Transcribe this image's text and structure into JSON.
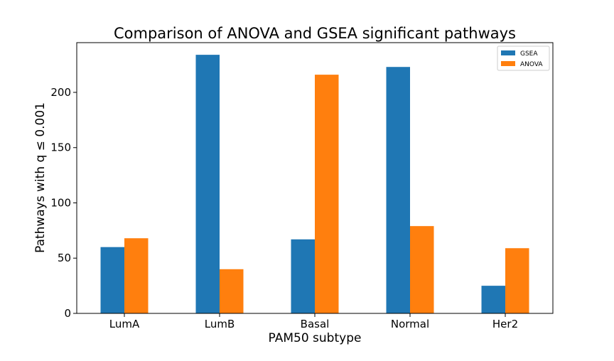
{
  "chart_data": {
    "type": "bar",
    "title": "Comparison of ANOVA and GSEA significant pathways",
    "xlabel": "PAM50 subtype",
    "ylabel": "Pathways with q ≤ 0.001",
    "categories": [
      "LumA",
      "LumB",
      "Basal",
      "Normal",
      "Her2"
    ],
    "series": [
      {
        "name": "GSEA",
        "color": "#1f77b4",
        "values": [
          60,
          234,
          67,
          223,
          25
        ]
      },
      {
        "name": "ANOVA",
        "color": "#ff7f0e",
        "values": [
          68,
          40,
          216,
          79,
          59
        ]
      }
    ],
    "ylim": [
      0,
      245
    ],
    "yticks": [
      0,
      50,
      100,
      150,
      200
    ],
    "grid": false,
    "legend_position": "top-right"
  }
}
